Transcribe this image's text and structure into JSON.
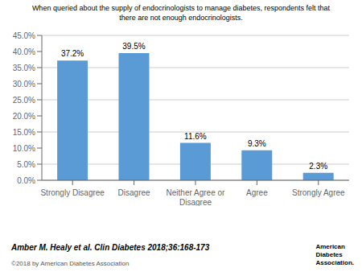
{
  "chart_data": {
    "type": "bar",
    "title": "When queried about the supply of endocrinologists to manage diabetes, respondents felt that\nthere are not enough endocrinologists.",
    "categories": [
      "Strongly Disagree",
      "Disagree",
      "Neither Agree or\nDisagree",
      "Agree",
      "Strongly Agree"
    ],
    "values": [
      37.2,
      39.5,
      11.6,
      9.3,
      2.3
    ],
    "value_labels": [
      "37.2%",
      "39.5%",
      "11.6%",
      "9.3%",
      "2.3%"
    ],
    "data_labels": true,
    "color": "#5b9bd5",
    "ylim": [
      0,
      45
    ],
    "yticks": [
      {
        "value": 0,
        "label": "0.0%"
      },
      {
        "value": 5,
        "label": "5.0%"
      },
      {
        "value": 10,
        "label": "10.0%"
      },
      {
        "value": 15,
        "label": "15.0%"
      },
      {
        "value": 20,
        "label": "20.0%"
      },
      {
        "value": 25,
        "label": "25.0%"
      },
      {
        "value": 30,
        "label": "30.0%"
      },
      {
        "value": 35,
        "label": "35.0%"
      },
      {
        "value": 40,
        "label": "40.0%"
      },
      {
        "value": 45,
        "label": "45.0%"
      }
    ],
    "grid": true,
    "annotations": [
      "Amber M. Healy et al. Clin Diabetes 2018;36:168-173",
      "©2018 by American Diabetes Association",
      "American",
      "Diabetes",
      "Association."
    ]
  }
}
